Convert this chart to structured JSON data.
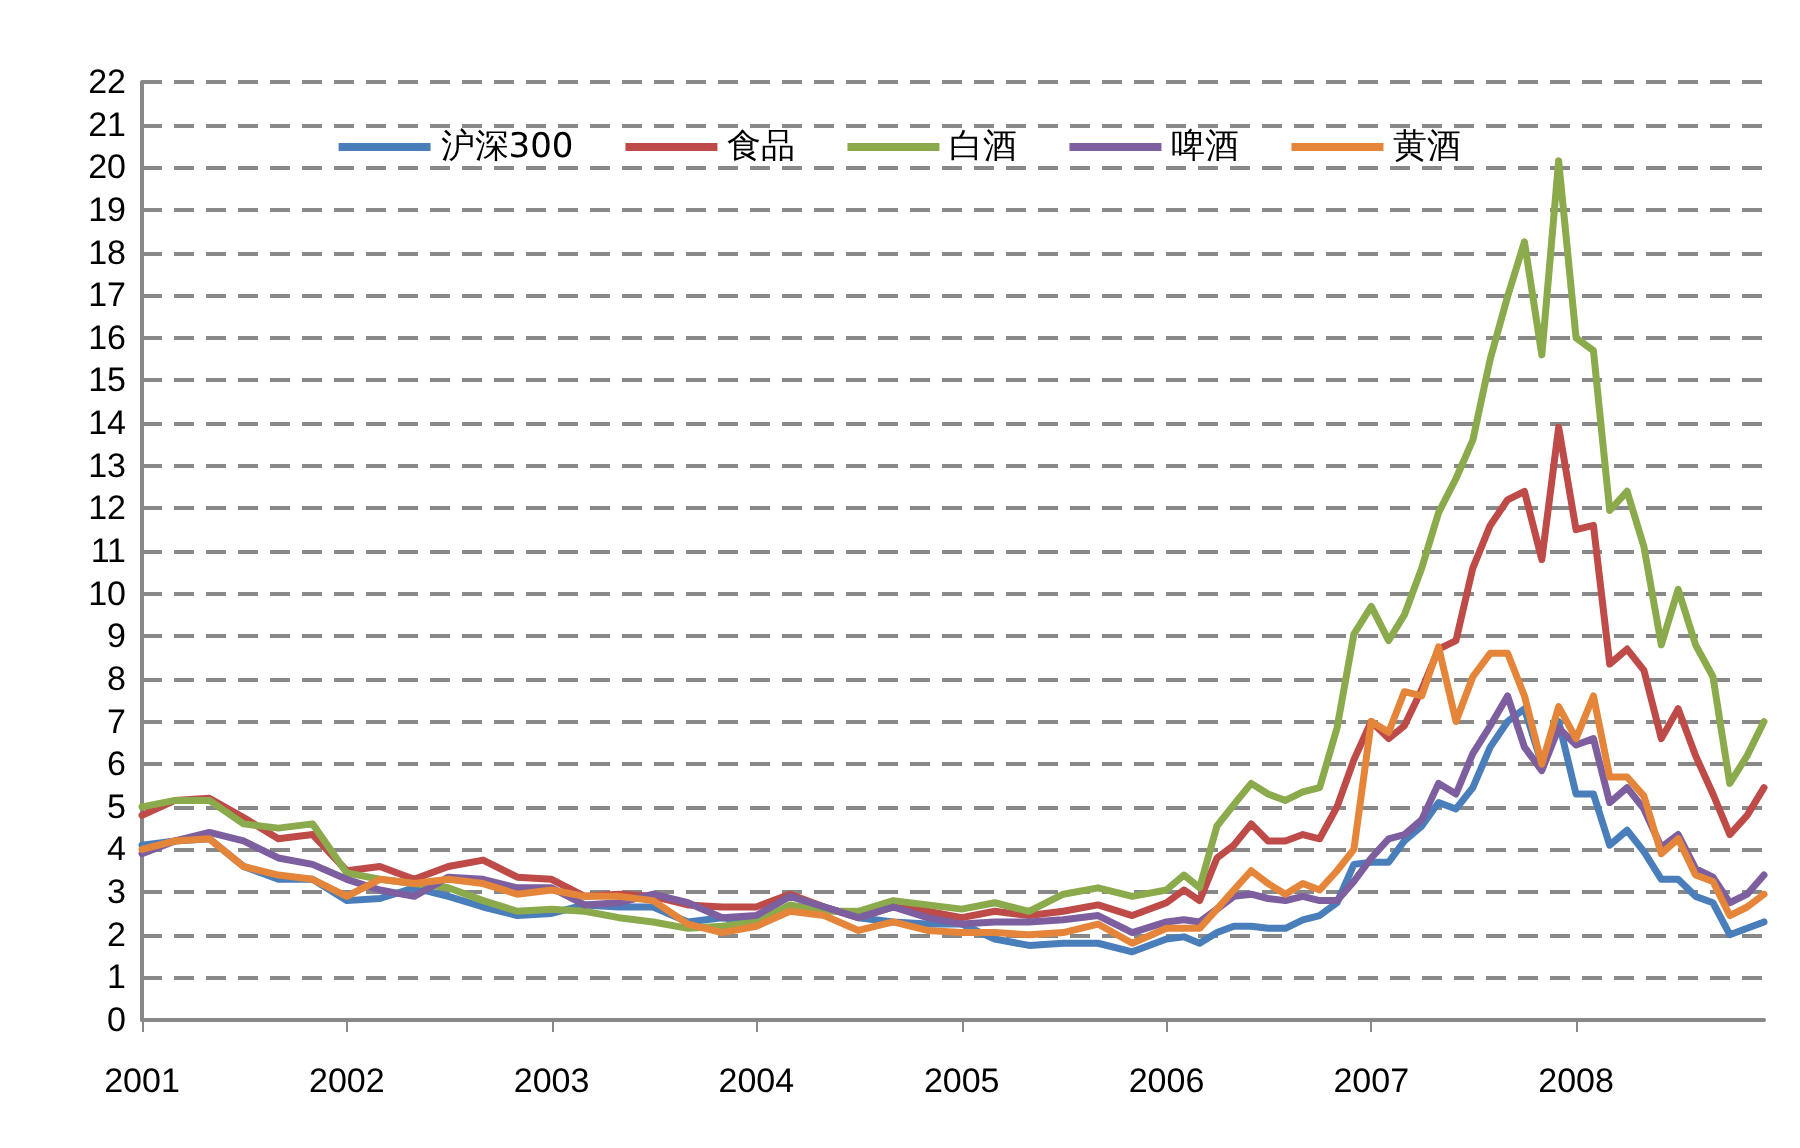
{
  "chart_data": {
    "type": "line",
    "marker": "none",
    "line_style": "solid",
    "grid": "y",
    "legend": "top",
    "x": [
      "2001-01",
      "2001-03",
      "2001-05",
      "2001-07",
      "2001-09",
      "2001-11",
      "2002-01",
      "2002-03",
      "2002-05",
      "2002-07",
      "2002-09",
      "2002-11",
      "2003-01",
      "2003-03",
      "2003-05",
      "2003-07",
      "2003-09",
      "2003-11",
      "2004-01",
      "2004-03",
      "2004-05",
      "2004-07",
      "2004-09",
      "2004-11",
      "2005-01",
      "2005-03",
      "2005-05",
      "2005-07",
      "2005-09",
      "2005-11",
      "2006-01",
      "2006-02",
      "2006-03",
      "2006-04",
      "2006-05",
      "2006-06",
      "2006-07",
      "2006-08",
      "2006-09",
      "2006-10",
      "2006-11",
      "2006-12",
      "2007-01",
      "2007-02",
      "2007-03",
      "2007-04",
      "2007-05",
      "2007-06",
      "2007-07",
      "2007-08",
      "2007-09",
      "2007-10",
      "2007-11",
      "2007-12",
      "2008-01",
      "2008-02",
      "2008-03",
      "2008-04",
      "2008-05",
      "2008-06",
      "2008-07",
      "2008-08",
      "2008-09",
      "2008-10",
      "2008-11",
      "2008-12"
    ],
    "xlim": [
      "2001-01",
      "2008-12"
    ],
    "xticks": [
      "2001",
      "2002",
      "2003",
      "2004",
      "2005",
      "2006",
      "2007",
      "2008"
    ],
    "ylim": [
      0,
      22
    ],
    "yticks": [
      0,
      1,
      2,
      3,
      4,
      5,
      6,
      7,
      8,
      9,
      10,
      11,
      12,
      13,
      14,
      15,
      16,
      17,
      18,
      19,
      20,
      21,
      22
    ],
    "series": [
      {
        "name": "沪深300",
        "color": "#4a7ebb",
        "values": [
          4.1,
          4.2,
          4.25,
          3.6,
          3.3,
          3.3,
          2.8,
          2.85,
          3.1,
          2.9,
          2.65,
          2.45,
          2.5,
          2.7,
          2.65,
          2.65,
          2.3,
          2.4,
          2.3,
          2.65,
          2.65,
          2.4,
          2.3,
          2.25,
          2.25,
          1.9,
          1.75,
          1.8,
          1.8,
          1.6,
          1.9,
          1.95,
          1.8,
          2.05,
          2.2,
          2.2,
          2.15,
          2.15,
          2.35,
          2.45,
          2.75,
          3.65,
          3.7,
          3.7,
          4.2,
          4.55,
          5.1,
          4.95,
          5.45,
          6.4,
          7.0,
          7.3,
          6.0,
          7.0,
          5.3,
          5.3,
          4.1,
          4.45,
          3.95,
          3.3,
          3.3,
          2.9,
          2.75,
          2.0,
          2.15,
          2.3
        ]
      },
      {
        "name": "食品",
        "color": "#be4b48",
        "values": [
          4.8,
          5.15,
          5.2,
          4.75,
          4.25,
          4.35,
          3.5,
          3.6,
          3.3,
          3.6,
          3.75,
          3.35,
          3.3,
          2.9,
          2.95,
          2.9,
          2.7,
          2.65,
          2.65,
          2.95,
          2.65,
          2.4,
          2.65,
          2.55,
          2.4,
          2.55,
          2.45,
          2.55,
          2.7,
          2.45,
          2.75,
          3.05,
          2.8,
          3.8,
          4.1,
          4.6,
          4.2,
          4.2,
          4.35,
          4.25,
          5.0,
          6.1,
          7.0,
          6.6,
          6.9,
          7.75,
          8.7,
          8.9,
          10.6,
          11.6,
          12.2,
          12.4,
          10.8,
          13.9,
          11.5,
          11.6,
          8.35,
          8.7,
          8.2,
          6.6,
          7.3,
          6.2,
          5.3,
          4.35,
          4.8,
          5.45
        ]
      },
      {
        "name": "白酒",
        "color": "#8aaa4c",
        "values": [
          5.0,
          5.15,
          5.15,
          4.6,
          4.5,
          4.6,
          3.45,
          3.3,
          3.2,
          3.1,
          2.8,
          2.55,
          2.6,
          2.55,
          2.4,
          2.3,
          2.15,
          2.2,
          2.3,
          2.7,
          2.55,
          2.55,
          2.8,
          2.7,
          2.6,
          2.75,
          2.55,
          2.95,
          3.1,
          2.9,
          3.05,
          3.4,
          3.1,
          4.55,
          5.05,
          5.55,
          5.3,
          5.15,
          5.35,
          5.45,
          6.85,
          9.05,
          9.7,
          8.9,
          9.5,
          10.6,
          11.9,
          12.7,
          13.6,
          15.5,
          16.97,
          18.25,
          15.6,
          20.15,
          16.0,
          15.7,
          11.95,
          12.4,
          11.1,
          8.8,
          10.1,
          8.8,
          8.05,
          5.55,
          6.2,
          7.0
        ]
      },
      {
        "name": "啤酒",
        "color": "#7d5fa0",
        "values": [
          3.9,
          4.2,
          4.4,
          4.2,
          3.8,
          3.65,
          3.3,
          3.05,
          2.9,
          3.35,
          3.3,
          3.1,
          3.1,
          2.7,
          2.75,
          2.95,
          2.75,
          2.4,
          2.45,
          2.9,
          2.65,
          2.4,
          2.65,
          2.4,
          2.25,
          2.3,
          2.3,
          2.35,
          2.45,
          2.05,
          2.3,
          2.35,
          2.3,
          2.6,
          2.9,
          2.95,
          2.85,
          2.8,
          2.9,
          2.8,
          2.8,
          3.25,
          3.8,
          4.25,
          4.35,
          4.7,
          5.55,
          5.3,
          6.25,
          6.9,
          7.6,
          6.4,
          5.85,
          6.85,
          6.45,
          6.6,
          5.1,
          5.45,
          4.95,
          4.05,
          4.35,
          3.55,
          3.35,
          2.75,
          2.95,
          3.4
        ]
      },
      {
        "name": "黄酒",
        "color": "#e5853a",
        "values": [
          4.0,
          4.2,
          4.25,
          3.6,
          3.4,
          3.3,
          2.9,
          3.3,
          3.2,
          3.3,
          3.2,
          2.95,
          3.05,
          2.9,
          2.9,
          2.8,
          2.25,
          2.05,
          2.2,
          2.55,
          2.45,
          2.1,
          2.3,
          2.1,
          2.05,
          2.05,
          2.0,
          2.05,
          2.25,
          1.8,
          2.15,
          2.15,
          2.15,
          2.6,
          3.05,
          3.5,
          3.2,
          2.95,
          3.2,
          3.05,
          3.5,
          4.0,
          7.0,
          6.75,
          7.7,
          7.6,
          8.75,
          7.0,
          8.05,
          8.6,
          8.6,
          7.6,
          6.0,
          7.35,
          6.6,
          7.6,
          5.7,
          5.7,
          5.25,
          3.9,
          4.25,
          3.4,
          3.25,
          2.45,
          2.65,
          2.95
        ]
      }
    ]
  }
}
